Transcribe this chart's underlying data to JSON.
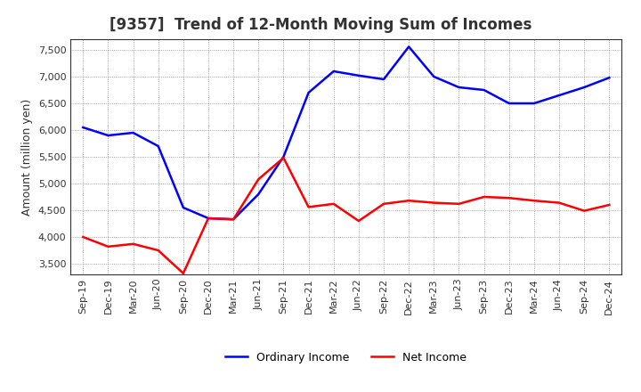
{
  "title": "[9357]  Trend of 12-Month Moving Sum of Incomes",
  "ylabel": "Amount (million yen)",
  "xlabels": [
    "Sep-19",
    "Dec-19",
    "Mar-20",
    "Jun-20",
    "Sep-20",
    "Dec-20",
    "Mar-21",
    "Jun-21",
    "Sep-21",
    "Dec-21",
    "Mar-22",
    "Jun-22",
    "Sep-22",
    "Dec-22",
    "Mar-23",
    "Jun-23",
    "Sep-23",
    "Dec-23",
    "Mar-24",
    "Jun-24",
    "Sep-24",
    "Dec-24"
  ],
  "ordinary_income": [
    6050,
    5900,
    5950,
    5700,
    4550,
    4350,
    4330,
    4800,
    5500,
    6700,
    7100,
    7020,
    6950,
    7560,
    7000,
    6800,
    6750,
    6500,
    6500,
    6650,
    6800,
    6980
  ],
  "net_income": [
    4000,
    3820,
    3870,
    3750,
    3320,
    4350,
    4330,
    5080,
    5480,
    4560,
    4620,
    4300,
    4620,
    4680,
    4640,
    4620,
    4750,
    4730,
    4680,
    4640,
    4490,
    4600
  ],
  "ordinary_income_color": "#0000ff",
  "net_income_color": "#ff0000",
  "ylim": [
    3300,
    7700
  ],
  "yticks": [
    3500,
    4000,
    4500,
    5000,
    5500,
    6000,
    6500,
    7000,
    7500
  ],
  "background_color": "#ffffff",
  "grid_color": "#555555",
  "title_color": "#333333",
  "legend_ordinary": "Ordinary Income",
  "legend_net": "Net Income",
  "title_fontsize": 12,
  "axis_fontsize": 9,
  "tick_fontsize": 8,
  "legend_fontsize": 9
}
